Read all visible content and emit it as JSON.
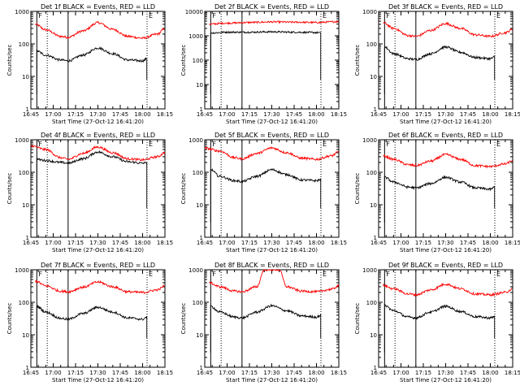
{
  "figure": {
    "colors": {
      "events": "#000000",
      "lld": "#ff0000",
      "axes": "#000000",
      "background": "#ffffff"
    }
  },
  "chart_data": [
    {
      "type": "line",
      "title": "Det 1f BLACK = Events, RED = LLD",
      "xlabel": "Start Time (27-Oct-12 16:41:20)",
      "ylabel": "Counts/sec",
      "x_ticks": [
        "16:45",
        "17:00",
        "17:15",
        "17:30",
        "17:45",
        "18:00",
        "18:15"
      ],
      "y_ticks": [
        "1",
        "10",
        "100",
        "1000"
      ],
      "ylim": [
        1,
        1000
      ],
      "y_scale": "log",
      "markers": [
        {
          "label": "F",
          "time": "16:49",
          "style": "solid"
        },
        {
          "label": "E",
          "time": "18:03",
          "style": "dotted"
        }
      ],
      "extra_lines": [
        {
          "time": "16:56",
          "style": "dotted"
        },
        {
          "time": "17:10",
          "style": "solid"
        }
      ],
      "series": [
        {
          "name": "LLD",
          "x": [
            "16:48",
            "16:55",
            "17:05",
            "17:10",
            "17:20",
            "17:30",
            "17:40",
            "17:50",
            "18:00",
            "18:10",
            "18:15"
          ],
          "y": [
            400,
            270,
            170,
            160,
            250,
            450,
            280,
            170,
            150,
            200,
            300
          ]
        },
        {
          "name": "Events",
          "x": [
            "16:49",
            "16:55",
            "17:05",
            "17:10",
            "17:20",
            "17:30",
            "17:40",
            "17:50",
            "18:00",
            "18:03"
          ],
          "y": [
            60,
            45,
            32,
            30,
            45,
            75,
            50,
            32,
            30,
            35
          ]
        }
      ]
    },
    {
      "type": "line",
      "title": "Det 2f BLACK = Events, RED = LLD",
      "xlabel": "Start Time (27-Oct-12 16:41:20)",
      "ylabel": "Counts/sec",
      "x_ticks": [
        "16:45",
        "17:00",
        "17:15",
        "17:30",
        "17:45",
        "18:00",
        "18:15"
      ],
      "y_ticks": [
        "1",
        "10",
        "100",
        "1000",
        "10000"
      ],
      "ylim": [
        1,
        10000
      ],
      "y_scale": "log",
      "markers": [
        {
          "label": "F",
          "time": "16:49",
          "style": "solid"
        },
        {
          "label": "E",
          "time": "18:03",
          "style": "dotted"
        }
      ],
      "extra_lines": [
        {
          "time": "16:56",
          "style": "dotted"
        },
        {
          "time": "17:10",
          "style": "solid"
        }
      ],
      "series": [
        {
          "name": "LLD",
          "x": [
            "16:48",
            "17:00",
            "17:15",
            "17:30",
            "17:45",
            "18:00",
            "18:15"
          ],
          "y": [
            3000,
            3300,
            3500,
            3700,
            3600,
            3500,
            3800
          ]
        },
        {
          "name": "Events",
          "x": [
            "16:49",
            "17:00",
            "17:15",
            "17:30",
            "17:45",
            "18:00",
            "18:03"
          ],
          "y": [
            1300,
            1400,
            1400,
            1450,
            1400,
            1350,
            1300
          ]
        }
      ]
    },
    {
      "type": "line",
      "title": "Det 3f BLACK = Events, RED = LLD",
      "xlabel": "Start Time (27-Oct-12 16:41:20)",
      "ylabel": "Counts/sec",
      "x_ticks": [
        "16:45",
        "17:00",
        "17:15",
        "17:30",
        "17:45",
        "18:00",
        "18:15"
      ],
      "y_ticks": [
        "1",
        "10",
        "100",
        "1000"
      ],
      "ylim": [
        1,
        1000
      ],
      "y_scale": "log",
      "markers": [
        {
          "label": "F",
          "time": "16:49",
          "style": "solid"
        },
        {
          "label": "E",
          "time": "18:03",
          "style": "dotted"
        }
      ],
      "extra_lines": [
        {
          "time": "16:56",
          "style": "dotted"
        },
        {
          "time": "17:10",
          "style": "solid"
        }
      ],
      "series": [
        {
          "name": "LLD",
          "x": [
            "16:48",
            "16:55",
            "17:05",
            "17:10",
            "17:20",
            "17:30",
            "17:40",
            "17:50",
            "18:00",
            "18:10",
            "18:15"
          ],
          "y": [
            450,
            300,
            180,
            170,
            260,
            420,
            300,
            190,
            170,
            220,
            280
          ]
        },
        {
          "name": "Events",
          "x": [
            "16:49",
            "16:55",
            "17:05",
            "17:10",
            "17:20",
            "17:30",
            "17:40",
            "17:50",
            "18:00",
            "18:03"
          ],
          "y": [
            80,
            50,
            35,
            33,
            50,
            80,
            55,
            38,
            35,
            40
          ]
        }
      ]
    },
    {
      "type": "line",
      "title": "Det 4f BLACK = Events, RED = LLD",
      "xlabel": "Start Time (27-Oct-12 16:41:20)",
      "ylabel": "Counts/sec",
      "x_ticks": [
        "16:45",
        "17:00",
        "17:15",
        "17:30",
        "17:45",
        "18:00",
        "18:15"
      ],
      "y_ticks": [
        "1",
        "10",
        "100",
        "1000"
      ],
      "ylim": [
        1,
        1000
      ],
      "y_scale": "log",
      "markers": [
        {
          "label": "F",
          "time": "16:49",
          "style": "solid"
        },
        {
          "label": "E",
          "time": "18:03",
          "style": "dotted"
        }
      ],
      "extra_lines": [
        {
          "time": "16:56",
          "style": "dotted"
        },
        {
          "time": "17:10",
          "style": "solid"
        }
      ],
      "series": [
        {
          "name": "LLD",
          "x": [
            "16:45",
            "16:55",
            "17:05",
            "17:10",
            "17:20",
            "17:30",
            "17:40",
            "17:50",
            "18:00",
            "18:10",
            "18:15"
          ],
          "y": [
            650,
            500,
            280,
            250,
            380,
            600,
            400,
            260,
            240,
            300,
            400
          ]
        },
        {
          "name": "Events",
          "x": [
            "16:49",
            "16:55",
            "17:05",
            "17:10",
            "17:20",
            "17:30",
            "17:40",
            "17:50",
            "18:00",
            "18:03"
          ],
          "y": [
            250,
            230,
            200,
            190,
            260,
            420,
            300,
            210,
            190,
            200
          ]
        }
      ]
    },
    {
      "type": "line",
      "title": "Det 5f BLACK = Events, RED = LLD",
      "xlabel": "Start Time (27-Oct-12 16:41:20)",
      "ylabel": "Counts/sec",
      "x_ticks": [
        "16:45",
        "17:00",
        "17:15",
        "17:30",
        "17:45",
        "18:00",
        "18:15"
      ],
      "y_ticks": [
        "1",
        "10",
        "100",
        "1000"
      ],
      "ylim": [
        1,
        1000
      ],
      "y_scale": "log",
      "markers": [
        {
          "label": "F",
          "time": "16:49",
          "style": "solid"
        },
        {
          "label": "E",
          "time": "18:03",
          "style": "dotted"
        }
      ],
      "extra_lines": [
        {
          "time": "16:56",
          "style": "dotted"
        },
        {
          "time": "17:10",
          "style": "solid"
        }
      ],
      "series": [
        {
          "name": "LLD",
          "x": [
            "16:45",
            "16:55",
            "17:05",
            "17:10",
            "17:20",
            "17:30",
            "17:40",
            "17:50",
            "18:00",
            "18:10",
            "18:15"
          ],
          "y": [
            550,
            450,
            280,
            260,
            380,
            560,
            400,
            270,
            250,
            320,
            420
          ]
        },
        {
          "name": "Events",
          "x": [
            "16:49",
            "16:55",
            "17:05",
            "17:10",
            "17:20",
            "17:30",
            "17:40",
            "17:50",
            "18:00",
            "18:03"
          ],
          "y": [
            120,
            75,
            55,
            52,
            75,
            120,
            85,
            58,
            55,
            60
          ]
        }
      ]
    },
    {
      "type": "line",
      "title": "Det 6f BLACK = Events, RED = LLD",
      "xlabel": "Start Time (27-Oct-12 16:41:20)",
      "ylabel": "Counts/sec",
      "x_ticks": [
        "16:45",
        "17:00",
        "17:15",
        "17:30",
        "17:45",
        "18:00",
        "18:15"
      ],
      "y_ticks": [
        "1",
        "10",
        "100",
        "1000"
      ],
      "ylim": [
        1,
        1000
      ],
      "y_scale": "log",
      "markers": [
        {
          "label": "F",
          "time": "16:49",
          "style": "solid"
        },
        {
          "label": "E",
          "time": "18:03",
          "style": "dotted"
        }
      ],
      "extra_lines": [
        {
          "time": "16:56",
          "style": "dotted"
        },
        {
          "time": "17:10",
          "style": "solid"
        }
      ],
      "series": [
        {
          "name": "LLD",
          "x": [
            "16:48",
            "16:55",
            "17:05",
            "17:10",
            "17:20",
            "17:30",
            "17:40",
            "17:50",
            "18:00",
            "18:10",
            "18:15"
          ],
          "y": [
            320,
            250,
            170,
            160,
            220,
            350,
            250,
            160,
            150,
            180,
            230
          ]
        },
        {
          "name": "Events",
          "x": [
            "16:49",
            "16:55",
            "17:05",
            "17:10",
            "17:20",
            "17:30",
            "17:40",
            "17:50",
            "18:00",
            "18:03"
          ],
          "y": [
            70,
            50,
            35,
            33,
            45,
            70,
            50,
            33,
            30,
            35
          ]
        }
      ]
    },
    {
      "type": "line",
      "title": "Det 7f BLACK = Events, RED = LLD",
      "xlabel": "Start Time (27-Oct-12 16:41:20)",
      "ylabel": "Counts/sec",
      "x_ticks": [
        "16:45",
        "17:00",
        "17:15",
        "17:30",
        "17:45",
        "18:00",
        "18:15"
      ],
      "y_ticks": [
        "1",
        "10",
        "100",
        "1000"
      ],
      "ylim": [
        1,
        1000
      ],
      "y_scale": "log",
      "markers": [
        {
          "label": "F",
          "time": "16:49",
          "style": "solid"
        },
        {
          "label": "E",
          "time": "18:03",
          "style": "dotted"
        }
      ],
      "extra_lines": [
        {
          "time": "16:56",
          "style": "dotted"
        },
        {
          "time": "17:10",
          "style": "solid"
        }
      ],
      "series": [
        {
          "name": "LLD",
          "x": [
            "16:48",
            "16:55",
            "17:05",
            "17:10",
            "17:20",
            "17:30",
            "17:40",
            "17:50",
            "18:00",
            "18:10",
            "18:15"
          ],
          "y": [
            450,
            320,
            220,
            210,
            290,
            420,
            300,
            210,
            200,
            240,
            320
          ]
        },
        {
          "name": "Events",
          "x": [
            "16:49",
            "16:55",
            "17:05",
            "17:10",
            "17:20",
            "17:30",
            "17:40",
            "17:50",
            "18:00",
            "18:03"
          ],
          "y": [
            75,
            50,
            32,
            30,
            45,
            70,
            50,
            33,
            30,
            35
          ]
        }
      ]
    },
    {
      "type": "line",
      "title": "Det 8f BLACK = Events, RED = LLD",
      "xlabel": "Start Time (27-Oct-12 16:41:20)",
      "ylabel": "Counts/sec",
      "x_ticks": [
        "16:45",
        "17:00",
        "17:15",
        "17:30",
        "17:45",
        "18:00",
        "18:15"
      ],
      "y_ticks": [
        "1",
        "10",
        "100",
        "1000"
      ],
      "ylim": [
        1,
        1000
      ],
      "y_scale": "log",
      "markers": [
        {
          "label": "F",
          "time": "16:49",
          "style": "solid"
        },
        {
          "label": "E",
          "time": "18:03",
          "style": "dotted"
        }
      ],
      "extra_lines": [
        {
          "time": "16:56",
          "style": "dotted"
        },
        {
          "time": "17:10",
          "style": "solid"
        }
      ],
      "series": [
        {
          "name": "LLD",
          "x": [
            "16:48",
            "16:55",
            "17:05",
            "17:10",
            "17:20",
            "17:25",
            "17:30",
            "17:35",
            "17:40",
            "17:50",
            "18:00",
            "18:10",
            "18:15"
          ],
          "y": [
            400,
            300,
            220,
            210,
            300,
            1000,
            1000,
            1000,
            300,
            220,
            210,
            250,
            320
          ]
        },
        {
          "name": "Events",
          "x": [
            "16:49",
            "16:55",
            "17:05",
            "17:10",
            "17:20",
            "17:30",
            "17:40",
            "17:50",
            "18:00",
            "18:03"
          ],
          "y": [
            75,
            50,
            35,
            33,
            50,
            78,
            55,
            38,
            35,
            40
          ]
        }
      ]
    },
    {
      "type": "line",
      "title": "Det 9f BLACK = Events, RED = LLD",
      "xlabel": "Start Time (27-Oct-12 16:41:20)",
      "ylabel": "Counts/sec",
      "x_ticks": [
        "16:45",
        "17:00",
        "17:15",
        "17:30",
        "17:45",
        "18:00",
        "18:15"
      ],
      "y_ticks": [
        "1",
        "10",
        "100",
        "1000"
      ],
      "ylim": [
        1,
        1000
      ],
      "y_scale": "log",
      "markers": [
        {
          "label": "F",
          "time": "16:49",
          "style": "solid"
        },
        {
          "label": "E",
          "time": "18:03",
          "style": "dotted"
        }
      ],
      "extra_lines": [
        {
          "time": "16:56",
          "style": "dotted"
        },
        {
          "time": "17:10",
          "style": "solid"
        }
      ],
      "series": [
        {
          "name": "LLD",
          "x": [
            "16:48",
            "16:55",
            "17:05",
            "17:10",
            "17:20",
            "17:30",
            "17:40",
            "17:50",
            "18:00",
            "18:10",
            "18:15"
          ],
          "y": [
            330,
            260,
            180,
            170,
            240,
            360,
            260,
            180,
            170,
            200,
            260
          ]
        },
        {
          "name": "Events",
          "x": [
            "16:49",
            "16:55",
            "17:05",
            "17:10",
            "17:20",
            "17:30",
            "17:40",
            "17:50",
            "18:00",
            "18:03"
          ],
          "y": [
            80,
            55,
            35,
            33,
            50,
            75,
            52,
            36,
            33,
            36
          ]
        }
      ]
    }
  ]
}
